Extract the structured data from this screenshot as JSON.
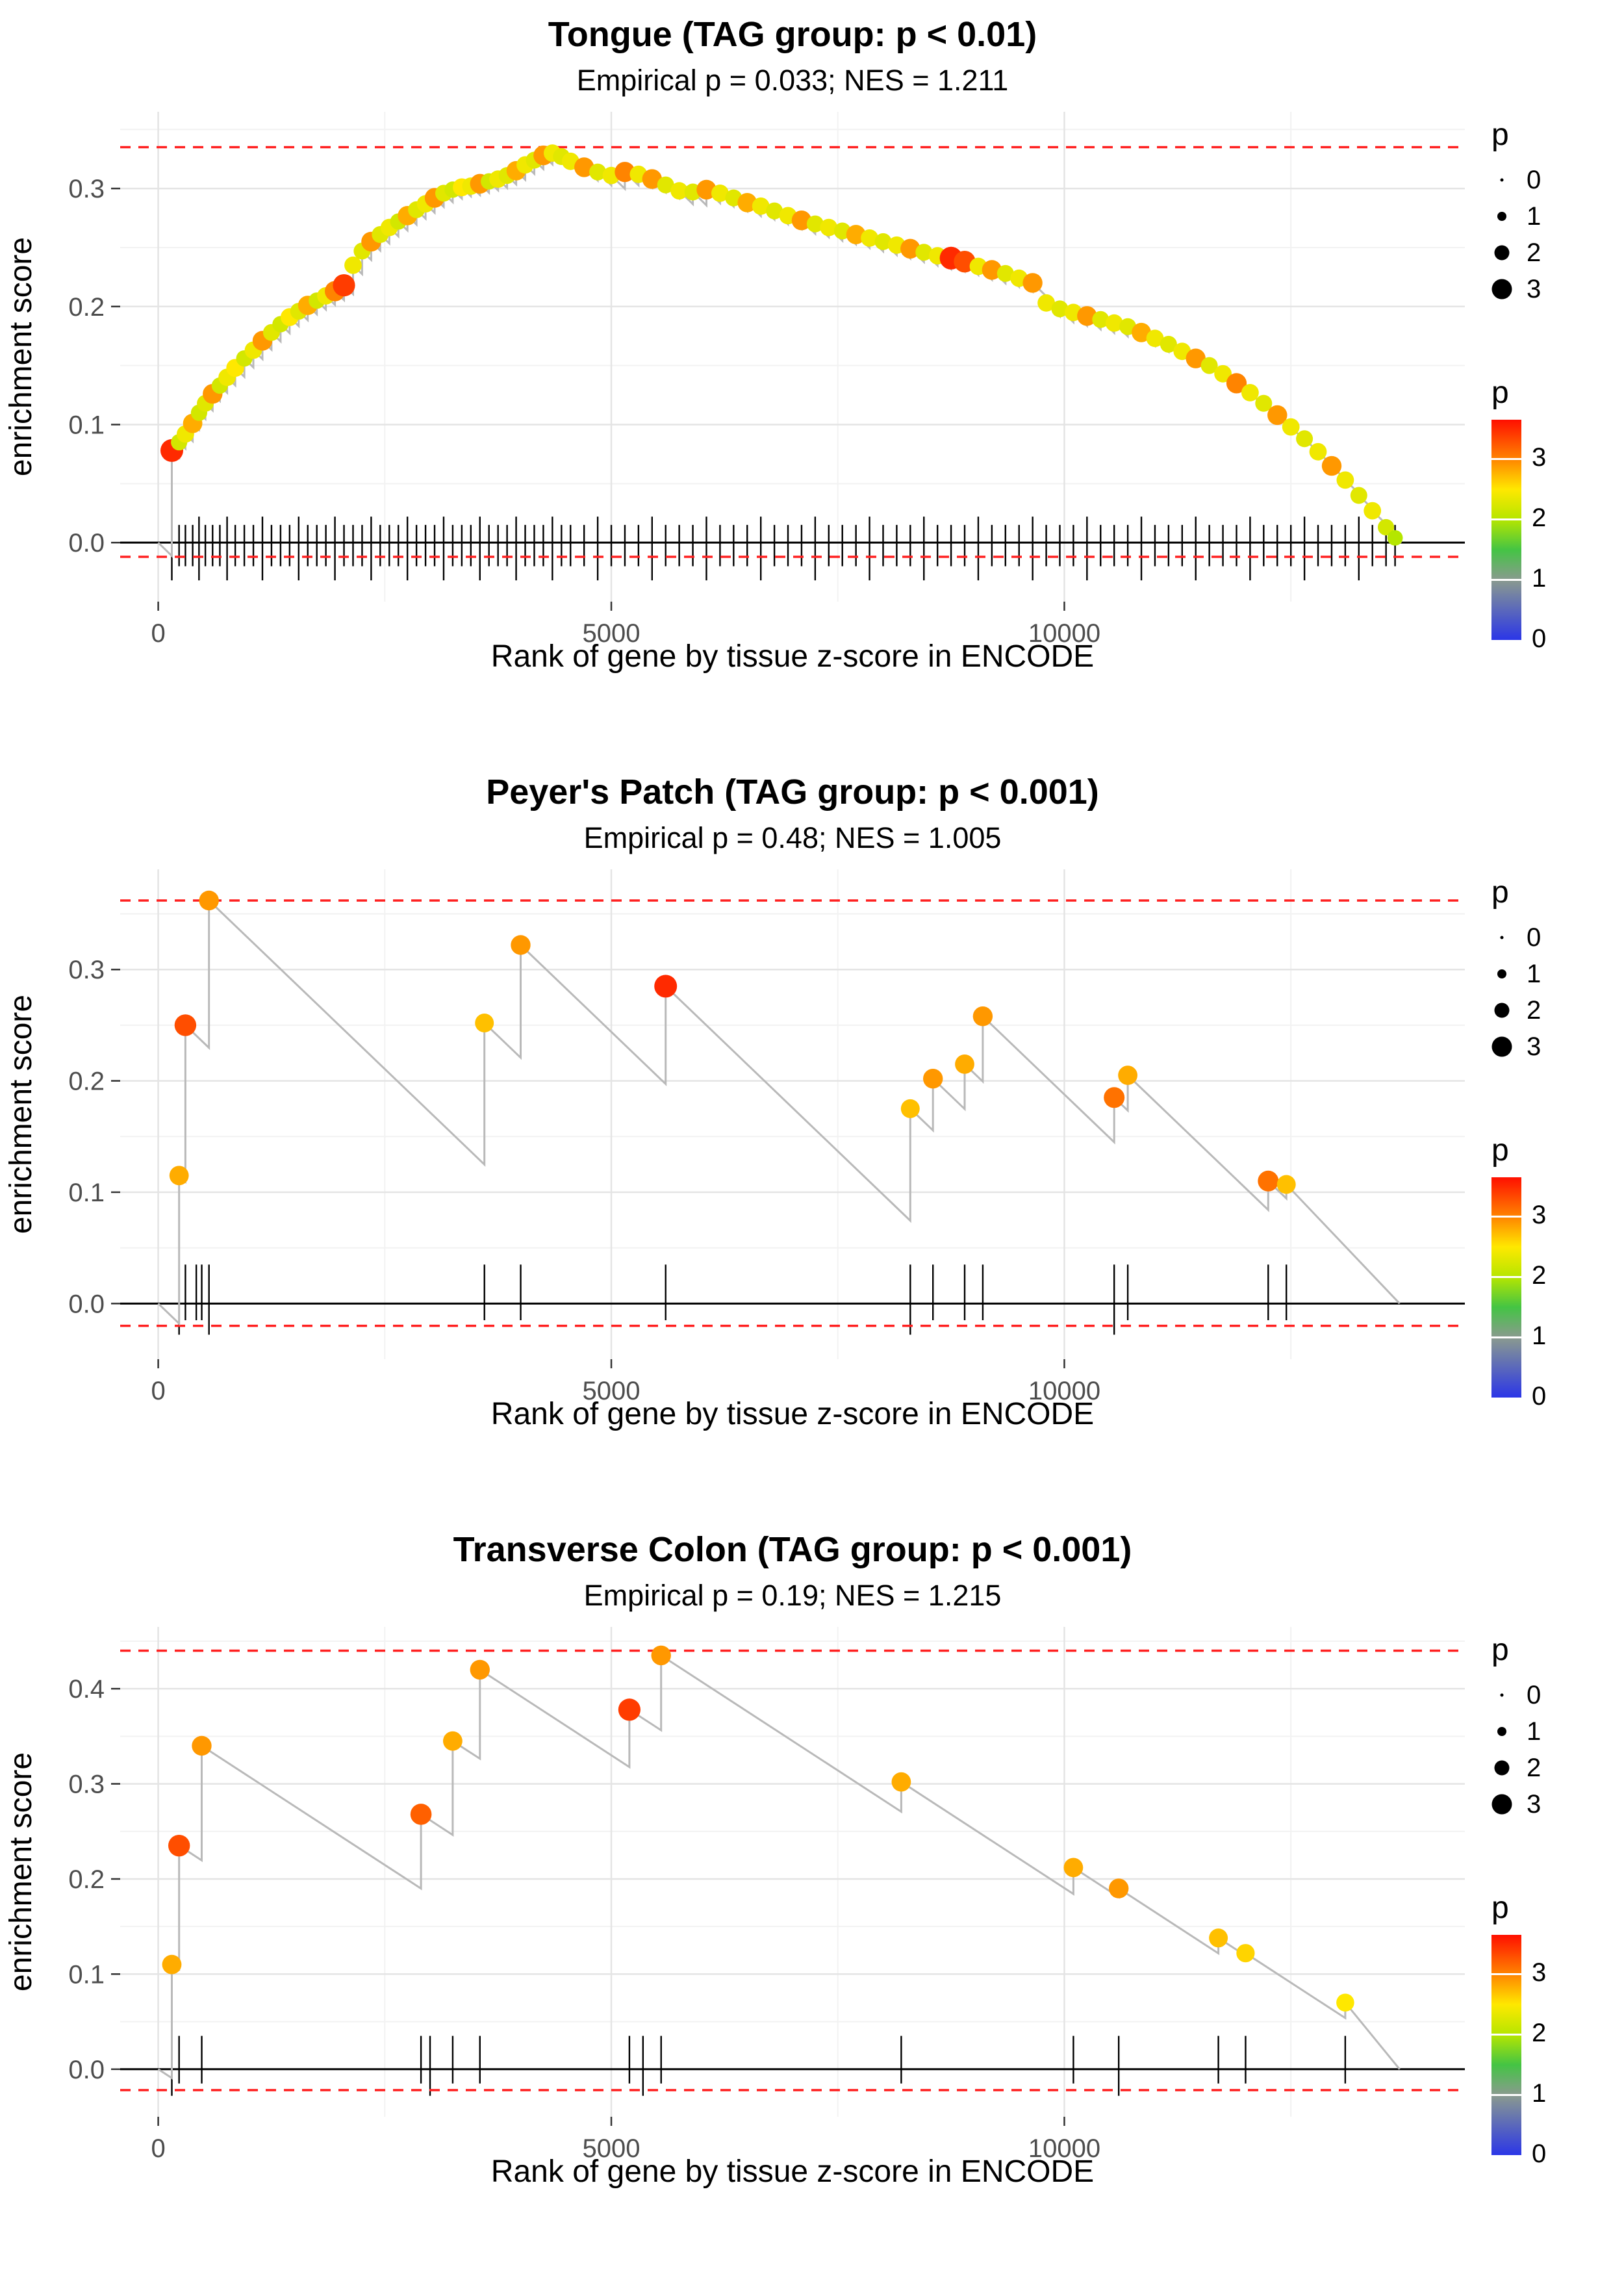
{
  "page": {
    "background": "#ffffff"
  },
  "colors": {
    "dashed_line": "#ff2020",
    "running_line": "#b9b9b9",
    "zero_line": "#000000",
    "grid_major": "#e4e4e4",
    "grid_minor": "#f2f2f2",
    "axis_text": "#4d4d4d",
    "rug": "#000000"
  },
  "colormap": {
    "domain": [
      0,
      3.65
    ],
    "stops": [
      [
        0,
        "#2a35e8"
      ],
      [
        1,
        "#8a9a8f"
      ],
      [
        1.5,
        "#44c444"
      ],
      [
        2,
        "#b5e600"
      ],
      [
        2.5,
        "#ffe800"
      ],
      [
        3,
        "#ff8400"
      ],
      [
        3.65,
        "#ff0f00"
      ]
    ]
  },
  "legend": {
    "size_title": "p",
    "size_items": [
      "0",
      "1",
      "2",
      "3"
    ],
    "size_radii": [
      2.5,
      7,
      11.5,
      15.5
    ],
    "color_title": "p",
    "color_ticks": [
      0,
      1,
      2,
      3
    ]
  },
  "chart_data": [
    {
      "type": "line",
      "title": "Tongue (TAG group: p < 0.01)",
      "subtitle": "Empirical p = 0.033; NES = 1.211",
      "xlabel": "Rank of gene by tissue z-score in ENCODE",
      "ylabel": "enrichment score",
      "x_domain": [
        -420,
        14420
      ],
      "y_domain": [
        -0.05,
        0.365
      ],
      "x_ticks": [
        0,
        5000,
        10000
      ],
      "x_tick_labels": [
        "0",
        "5000",
        "10000"
      ],
      "x_minor": [
        2500,
        7500,
        12500
      ],
      "y_ticks": [
        0,
        0.1,
        0.2,
        0.3
      ],
      "y_tick_labels": [
        "0.0",
        "0.1",
        "0.2",
        "0.3"
      ],
      "y_minor": [
        0.05,
        0.15,
        0.25,
        0.35
      ],
      "hline_top": 0.335,
      "hline_bottom": -0.012,
      "slope": 7.5e-05,
      "x_end": 13720,
      "rug": {
        "lo": -0.02,
        "hi": 0.015,
        "lo2": -0.032,
        "hi2": 0.022
      },
      "points": [
        [
          150,
          0.078,
          3.5
        ],
        [
          230,
          0.085,
          2.2
        ],
        [
          300,
          0.092,
          2.4
        ],
        [
          380,
          0.101,
          2.8
        ],
        [
          450,
          0.11,
          2.2
        ],
        [
          520,
          0.118,
          2.3
        ],
        [
          600,
          0.126,
          2.9
        ],
        [
          680,
          0.133,
          2.2
        ],
        [
          760,
          0.14,
          2.4
        ],
        [
          850,
          0.148,
          2.5
        ],
        [
          950,
          0.156,
          2.2
        ],
        [
          1050,
          0.163,
          2.4
        ],
        [
          1150,
          0.171,
          2.9
        ],
        [
          1250,
          0.178,
          2.3
        ],
        [
          1350,
          0.185,
          2.2
        ],
        [
          1450,
          0.191,
          2.5
        ],
        [
          1550,
          0.196,
          2.3
        ],
        [
          1650,
          0.201,
          2.8
        ],
        [
          1750,
          0.205,
          2.2
        ],
        [
          1850,
          0.209,
          2.4
        ],
        [
          1950,
          0.213,
          3.0
        ],
        [
          2050,
          0.218,
          3.4
        ],
        [
          2150,
          0.235,
          2.4
        ],
        [
          2250,
          0.247,
          2.3
        ],
        [
          2350,
          0.255,
          2.9
        ],
        [
          2450,
          0.261,
          2.3
        ],
        [
          2550,
          0.267,
          2.4
        ],
        [
          2650,
          0.272,
          2.2
        ],
        [
          2750,
          0.277,
          2.8
        ],
        [
          2850,
          0.282,
          2.3
        ],
        [
          2950,
          0.287,
          2.4
        ],
        [
          3050,
          0.292,
          2.9
        ],
        [
          3150,
          0.296,
          2.3
        ],
        [
          3250,
          0.299,
          2.2
        ],
        [
          3350,
          0.301,
          2.5
        ],
        [
          3450,
          0.302,
          2.4
        ],
        [
          3550,
          0.304,
          2.9
        ],
        [
          3650,
          0.306,
          2.2
        ],
        [
          3750,
          0.308,
          2.4
        ],
        [
          3850,
          0.311,
          2.3
        ],
        [
          3950,
          0.315,
          2.8
        ],
        [
          4050,
          0.32,
          2.4
        ],
        [
          4150,
          0.324,
          2.3
        ],
        [
          4250,
          0.328,
          2.9
        ],
        [
          4350,
          0.33,
          2.4
        ],
        [
          4450,
          0.327,
          2.3
        ],
        [
          4550,
          0.323,
          2.4
        ],
        [
          4700,
          0.318,
          2.9
        ],
        [
          4850,
          0.314,
          2.3
        ],
        [
          5000,
          0.311,
          2.4
        ],
        [
          5150,
          0.314,
          3.0
        ],
        [
          5300,
          0.312,
          2.4
        ],
        [
          5450,
          0.308,
          2.9
        ],
        [
          5600,
          0.303,
          2.3
        ],
        [
          5750,
          0.298,
          2.4
        ],
        [
          5900,
          0.297,
          2.3
        ],
        [
          6050,
          0.299,
          2.9
        ],
        [
          6200,
          0.296,
          2.4
        ],
        [
          6350,
          0.292,
          2.3
        ],
        [
          6500,
          0.288,
          2.8
        ],
        [
          6650,
          0.285,
          2.4
        ],
        [
          6800,
          0.281,
          2.3
        ],
        [
          6950,
          0.277,
          2.4
        ],
        [
          7100,
          0.273,
          2.9
        ],
        [
          7250,
          0.27,
          2.3
        ],
        [
          7400,
          0.267,
          2.4
        ],
        [
          7550,
          0.264,
          2.3
        ],
        [
          7700,
          0.261,
          2.8
        ],
        [
          7850,
          0.258,
          2.4
        ],
        [
          8000,
          0.255,
          2.3
        ],
        [
          8150,
          0.252,
          2.4
        ],
        [
          8300,
          0.249,
          2.9
        ],
        [
          8450,
          0.246,
          2.3
        ],
        [
          8600,
          0.243,
          2.4
        ],
        [
          8750,
          0.241,
          3.5
        ],
        [
          8900,
          0.238,
          3.3
        ],
        [
          9050,
          0.234,
          2.4
        ],
        [
          9200,
          0.231,
          2.9
        ],
        [
          9350,
          0.228,
          2.3
        ],
        [
          9500,
          0.224,
          2.4
        ],
        [
          9650,
          0.22,
          2.9
        ],
        [
          9800,
          0.203,
          2.4
        ],
        [
          9950,
          0.198,
          2.3
        ],
        [
          10100,
          0.195,
          2.4
        ],
        [
          10250,
          0.192,
          2.9
        ],
        [
          10400,
          0.189,
          2.3
        ],
        [
          10550,
          0.186,
          2.4
        ],
        [
          10700,
          0.183,
          2.3
        ],
        [
          10850,
          0.178,
          2.8
        ],
        [
          11000,
          0.173,
          2.4
        ],
        [
          11150,
          0.168,
          2.3
        ],
        [
          11300,
          0.162,
          2.4
        ],
        [
          11450,
          0.156,
          2.9
        ],
        [
          11600,
          0.15,
          2.3
        ],
        [
          11750,
          0.143,
          2.4
        ],
        [
          11900,
          0.135,
          3.0
        ],
        [
          12050,
          0.127,
          2.4
        ],
        [
          12200,
          0.118,
          2.3
        ],
        [
          12350,
          0.108,
          2.9
        ],
        [
          12500,
          0.098,
          2.4
        ],
        [
          12650,
          0.088,
          2.3
        ],
        [
          12800,
          0.077,
          2.4
        ],
        [
          12950,
          0.065,
          2.9
        ],
        [
          13100,
          0.053,
          2.4
        ],
        [
          13250,
          0.04,
          2.3
        ],
        [
          13400,
          0.027,
          2.4
        ],
        [
          13550,
          0.013,
          2.2
        ],
        [
          13650,
          0.004,
          2.0
        ]
      ],
      "rug_extra": []
    },
    {
      "type": "line",
      "title": "Peyer's Patch (TAG group: p < 0.001)",
      "subtitle": "Empirical p = 0.48; NES = 1.005",
      "xlabel": "Rank of gene by tissue z-score in ENCODE",
      "ylabel": "enrichment score",
      "x_domain": [
        -420,
        14420
      ],
      "y_domain": [
        -0.05,
        0.39
      ],
      "x_ticks": [
        0,
        5000,
        10000
      ],
      "x_tick_labels": [
        "0",
        "5000",
        "10000"
      ],
      "x_minor": [
        2500,
        7500,
        12500
      ],
      "y_ticks": [
        0,
        0.1,
        0.2,
        0.3
      ],
      "y_tick_labels": [
        "0.0",
        "0.1",
        "0.2",
        "0.3"
      ],
      "y_minor": [
        0.05,
        0.15,
        0.25,
        0.35
      ],
      "hline_top": 0.362,
      "hline_bottom": -0.02,
      "slope": 7.8e-05,
      "x_end": 13700,
      "rug": {
        "lo": -0.015,
        "hi": 0.035,
        "lo2": -0.028,
        "hi2": 0.035
      },
      "points": [
        [
          230,
          0.115,
          2.8
        ],
        [
          300,
          0.25,
          3.3
        ],
        [
          560,
          0.362,
          2.9
        ],
        [
          3600,
          0.252,
          2.7
        ],
        [
          4000,
          0.322,
          2.9
        ],
        [
          5600,
          0.285,
          3.5
        ],
        [
          8300,
          0.175,
          2.7
        ],
        [
          8550,
          0.202,
          2.9
        ],
        [
          8900,
          0.215,
          2.8
        ],
        [
          9100,
          0.258,
          2.9
        ],
        [
          10550,
          0.185,
          3.1
        ],
        [
          10700,
          0.205,
          2.8
        ],
        [
          12250,
          0.11,
          3.1
        ],
        [
          12450,
          0.107,
          2.7
        ]
      ],
      "rug_extra": [
        420,
        480
      ]
    },
    {
      "type": "line",
      "title": "Transverse Colon (TAG group: p < 0.001)",
      "subtitle": "Empirical p = 0.19; NES = 1.215",
      "xlabel": "Rank of gene by tissue z-score in ENCODE",
      "ylabel": "enrichment score",
      "x_domain": [
        -420,
        14420
      ],
      "y_domain": [
        -0.05,
        0.465
      ],
      "x_ticks": [
        0,
        5000,
        10000
      ],
      "x_tick_labels": [
        "0",
        "5000",
        "10000"
      ],
      "x_minor": [
        2500,
        7500,
        12500
      ],
      "y_ticks": [
        0,
        0.1,
        0.2,
        0.3,
        0.4
      ],
      "y_tick_labels": [
        "0.0",
        "0.1",
        "0.2",
        "0.3",
        "0.4"
      ],
      "y_minor": [
        0.05,
        0.15,
        0.25,
        0.35,
        0.45
      ],
      "hline_top": 0.44,
      "hline_bottom": -0.022,
      "slope": 6.2e-05,
      "x_end": 13700,
      "rug": {
        "lo": -0.015,
        "hi": 0.035,
        "lo2": -0.028,
        "hi2": 0.035
      },
      "points": [
        [
          150,
          0.11,
          2.8
        ],
        [
          230,
          0.235,
          3.3
        ],
        [
          480,
          0.34,
          2.9
        ],
        [
          2900,
          0.268,
          3.2
        ],
        [
          3250,
          0.345,
          2.8
        ],
        [
          3550,
          0.42,
          2.9
        ],
        [
          5200,
          0.378,
          3.4
        ],
        [
          5550,
          0.435,
          2.9
        ],
        [
          8200,
          0.302,
          2.8
        ],
        [
          10100,
          0.212,
          2.8
        ],
        [
          10600,
          0.19,
          2.9
        ],
        [
          11700,
          0.138,
          2.7
        ],
        [
          12000,
          0.122,
          2.6
        ],
        [
          13100,
          0.07,
          2.5
        ]
      ],
      "rug_extra": [
        3000,
        5350
      ]
    }
  ]
}
